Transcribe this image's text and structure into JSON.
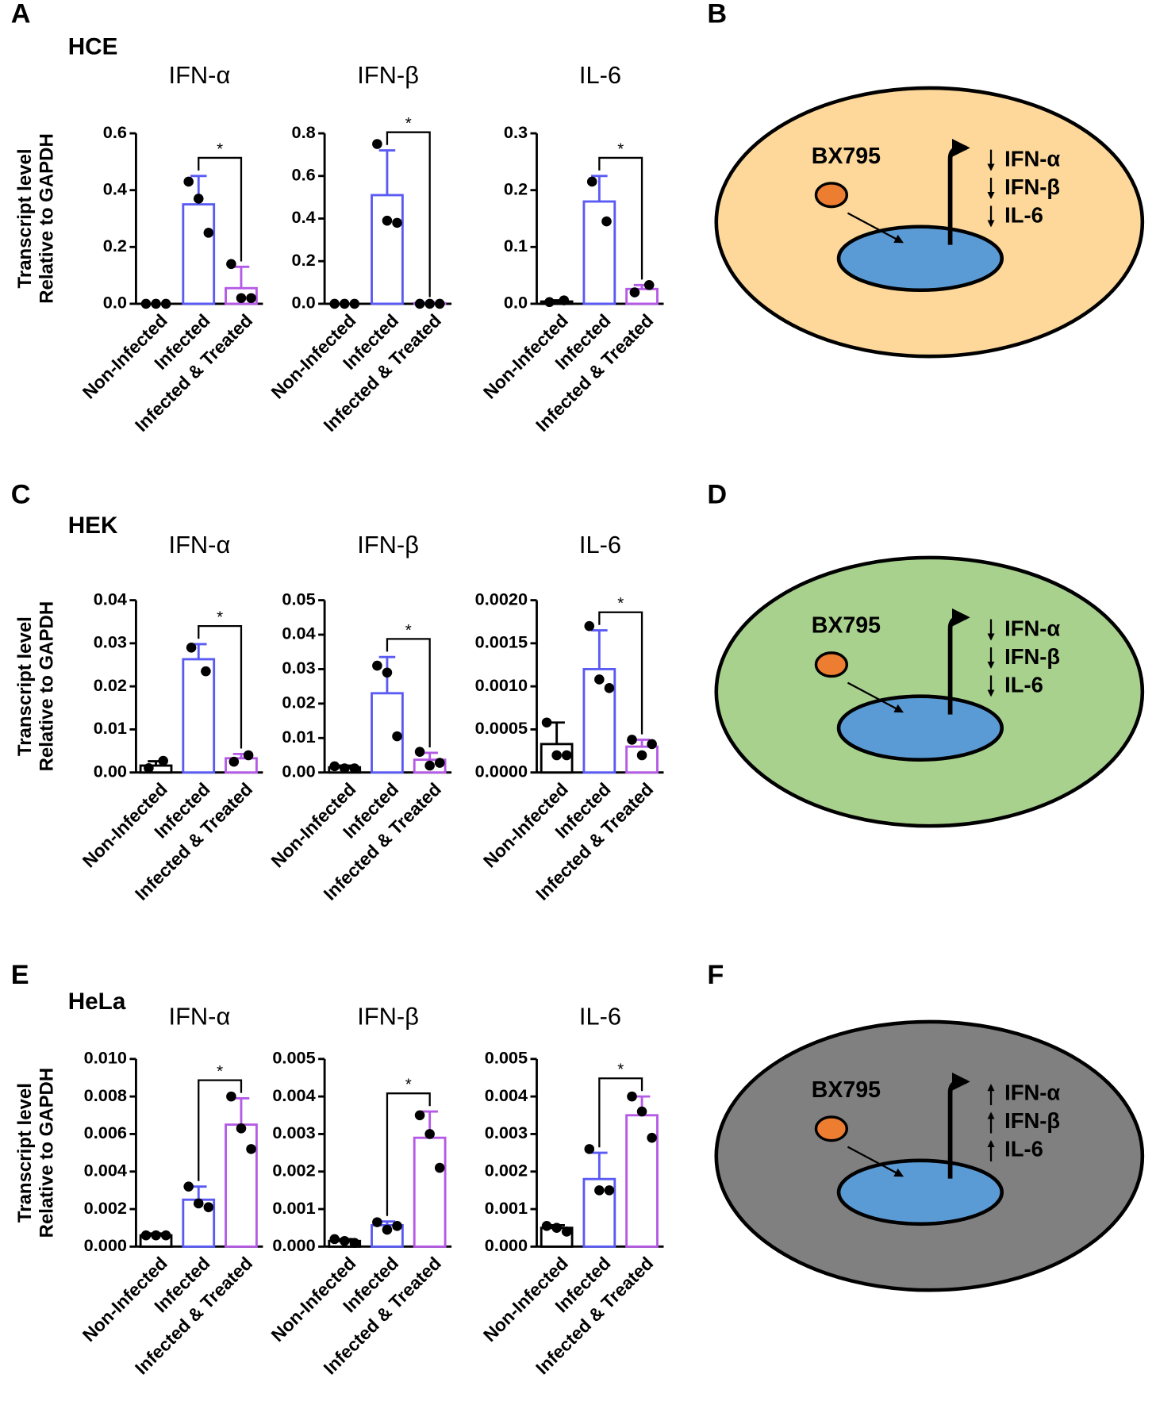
{
  "figure": {
    "rows": [
      {
        "letter": "A",
        "cell": "HCE",
        "ylabel": [
          "Transcript level",
          "Relative to GAPDH"
        ],
        "diagram": {
          "letter": "B",
          "drug": "BX795",
          "genes": [
            "IFN-α",
            "IFN-β",
            "IL-6"
          ],
          "arrow": "down",
          "color": "#fdd89a"
        }
      },
      {
        "letter": "C",
        "cell": "HEK",
        "ylabel": [
          "Transcript level",
          "Relative to GAPDH"
        ],
        "diagram": {
          "letter": "D",
          "drug": "BX795",
          "genes": [
            "IFN-α",
            "IFN-β",
            "IL-6"
          ],
          "arrow": "down",
          "color": "#a9d18e"
        }
      },
      {
        "letter": "E",
        "cell": "HeLa",
        "ylabel": [
          "Transcript level",
          "Relative to GAPDH"
        ],
        "diagram": {
          "letter": "F",
          "drug": "BX795",
          "genes": [
            "IFN-α",
            "IFN-β",
            "IL-6"
          ],
          "arrow": "up",
          "color": "#808080"
        }
      }
    ]
  },
  "chart_data": [
    {
      "type": "bar",
      "title": "IFN-α",
      "categories": [
        "Non-Infected",
        "Infected",
        "Infected & Treated"
      ],
      "values": [
        0.0,
        0.35,
        0.055
      ],
      "errors": [
        0,
        0.1,
        0.075
      ],
      "points": [
        [
          0,
          0,
          0
        ],
        [
          0.43,
          0.37,
          0.25
        ],
        [
          0.14,
          0.02,
          0.02
        ]
      ],
      "colors": [
        "#000000",
        "#5a5af5",
        "#b45ae6"
      ],
      "annotation": "*",
      "ylim": [
        0,
        0.6
      ],
      "yticks": [
        {
          "value": 0,
          "label": "0.0"
        },
        0.2,
        0.4,
        0.6
      ]
    },
    {
      "type": "bar",
      "title": "IFN-β",
      "categories": [
        "Non-Infected",
        "Infected",
        "Infected & Treated"
      ],
      "values": [
        0.0,
        0.51,
        0.003
      ],
      "errors": [
        0,
        0.21,
        0.003
      ],
      "points": [
        [
          0,
          0,
          0
        ],
        [
          0.75,
          0.39,
          0.38
        ],
        [
          0,
          0,
          0
        ]
      ],
      "colors": [
        "#000000",
        "#5a5af5",
        "#b45ae6"
      ],
      "annotation": "*",
      "ylim": [
        0,
        0.8
      ],
      "yticks": [
        {
          "value": 0,
          "label": "0.0"
        },
        0.2,
        0.4,
        0.6,
        0.8
      ]
    },
    {
      "type": "bar",
      "title": "IL-6",
      "categories": [
        "Non-Infected",
        "Infected",
        "Infected & Treated"
      ],
      "values": [
        0.004,
        0.18,
        0.026
      ],
      "errors": [
        0.002,
        0.045,
        0.007
      ],
      "points": [
        [
          0.003,
          0.006
        ],
        [
          0.215,
          0.145
        ],
        [
          0.02,
          0.033
        ]
      ],
      "colors": [
        "#000000",
        "#5a5af5",
        "#b45ae6"
      ],
      "annotation": "*",
      "ylim": [
        0,
        0.3
      ],
      "yticks": [
        {
          "value": 0,
          "label": "0.0"
        },
        0.1,
        0.2,
        0.3
      ]
    },
    {
      "type": "bar",
      "title": "IFN-α",
      "categories": [
        "Non-Infected",
        "Infected",
        "Infected & Treated"
      ],
      "values": [
        0.0016,
        0.0263,
        0.0033
      ],
      "errors": [
        0.001,
        0.0035,
        0.001
      ],
      "points": [
        [
          0.001,
          0.0027
        ],
        [
          0.029,
          0.0235
        ],
        [
          0.0025,
          0.004
        ]
      ],
      "colors": [
        "#000000",
        "#5a5af5",
        "#b45ae6"
      ],
      "annotation": "*",
      "ylim": [
        0,
        0.04
      ],
      "yticks": [
        {
          "value": 0,
          "label": "0.00"
        },
        0.01,
        0.02,
        0.03,
        0.04
      ]
    },
    {
      "type": "bar",
      "title": "IFN-β",
      "categories": [
        "Non-Infected",
        "Infected",
        "Infected & Treated"
      ],
      "values": [
        0.0015,
        0.023,
        0.0037
      ],
      "errors": [
        0.0005,
        0.0105,
        0.002
      ],
      "points": [
        [
          0.0018,
          0.0012,
          0.0012
        ],
        [
          0.031,
          0.029,
          0.0105
        ],
        [
          0.006,
          0.002,
          0.0028
        ]
      ],
      "colors": [
        "#000000",
        "#5a5af5",
        "#b45ae6"
      ],
      "annotation": "*",
      "ylim": [
        0,
        0.05
      ],
      "yticks": [
        {
          "value": 0,
          "label": "0.00"
        },
        0.01,
        0.02,
        0.03,
        0.04,
        0.05
      ]
    },
    {
      "type": "bar",
      "title": "IL-6",
      "categories": [
        "Non-Infected",
        "Infected",
        "Infected & Treated"
      ],
      "values": [
        0.00033,
        0.0012,
        0.0003
      ],
      "errors": [
        0.00025,
        0.00045,
        8e-05
      ],
      "points": [
        [
          0.00058,
          0.0002,
          0.0002
        ],
        [
          0.0017,
          0.00108,
          0.00098
        ],
        [
          0.00038,
          0.0002,
          0.00033
        ]
      ],
      "colors": [
        "#000000",
        "#5a5af5",
        "#b45ae6"
      ],
      "annotation": "*",
      "ylim": [
        0,
        0.002
      ],
      "yticks": [
        {
          "value": 0,
          "label": "0.0000"
        },
        {
          "value": 0.0005,
          "label": "0.0005"
        },
        {
          "value": 0.001,
          "label": "0.0010"
        },
        {
          "value": 0.0015,
          "label": "0.0015"
        },
        {
          "value": 0.002,
          "label": "0.0020"
        }
      ]
    },
    {
      "type": "bar",
      "title": "IFN-α",
      "categories": [
        "Non-Infected",
        "Infected",
        "Infected & Treated"
      ],
      "values": [
        0.0006,
        0.0025,
        0.0065
      ],
      "errors": [
        0.0001,
        0.0007,
        0.0014
      ],
      "points": [
        [
          0.0006,
          0.0006,
          0.0006
        ],
        [
          0.0032,
          0.0023,
          0.0021
        ],
        [
          0.008,
          0.0063,
          0.0052
        ]
      ],
      "colors": [
        "#000000",
        "#5a5af5",
        "#b45ae6"
      ],
      "annotation": "*",
      "ylim": [
        0,
        0.01
      ],
      "yticks": [
        {
          "value": 0,
          "label": "0.000"
        },
        0.002,
        0.004,
        0.006,
        0.008,
        {
          "value": 0.01,
          "label": "0.010"
        }
      ]
    },
    {
      "type": "bar",
      "title": "IFN-β",
      "categories": [
        "Non-Infected",
        "Infected",
        "Infected & Treated"
      ],
      "values": [
        0.00015,
        0.00057,
        0.0029
      ],
      "errors": [
        5e-05,
        0.0001,
        0.0007
      ],
      "points": [
        [
          0.0002,
          0.00015,
          0.0001
        ],
        [
          0.00065,
          0.00045,
          0.00055
        ],
        [
          0.0035,
          0.003,
          0.0021
        ]
      ],
      "colors": [
        "#000000",
        "#5a5af5",
        "#b45ae6"
      ],
      "annotation": "*",
      "ylim": [
        0,
        0.005
      ],
      "yticks": [
        {
          "value": 0,
          "label": "0.000"
        },
        0.001,
        0.002,
        0.003,
        0.004,
        0.005
      ]
    },
    {
      "type": "bar",
      "title": "IL-6",
      "categories": [
        "Non-Infected",
        "Infected",
        "Infected & Treated"
      ],
      "values": [
        0.0005,
        0.0018,
        0.0035
      ],
      "errors": [
        7e-05,
        0.0007,
        0.0005
      ],
      "points": [
        [
          0.00055,
          0.0005,
          0.0004
        ],
        [
          0.0026,
          0.0015,
          0.0015
        ],
        [
          0.004,
          0.0036,
          0.0029
        ]
      ],
      "colors": [
        "#000000",
        "#5a5af5",
        "#b45ae6"
      ],
      "annotation": "*",
      "ylim": [
        0,
        0.005
      ],
      "yticks": [
        {
          "value": 0,
          "label": "0.000"
        },
        0.001,
        0.002,
        0.003,
        0.004,
        0.005
      ]
    }
  ]
}
